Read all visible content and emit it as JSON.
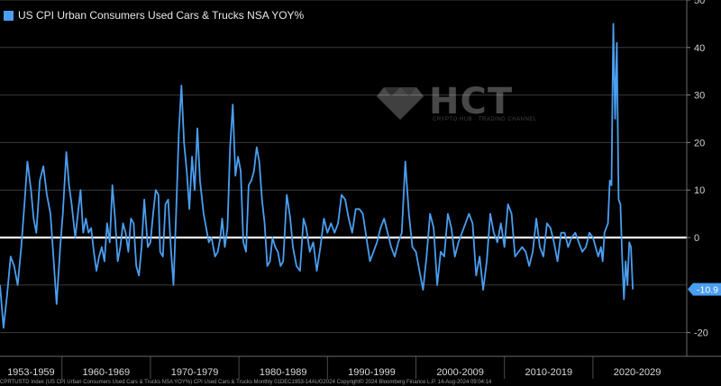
{
  "chart_data": {
    "type": "line",
    "title": "",
    "legend": [
      {
        "name": "US CPI Urban Consumers Used Cars & Trucks NSA YOY%",
        "color": "#4a9ef0"
      }
    ],
    "xlabel": "",
    "ylabel": "",
    "xlim": [
      1953,
      2030.6
    ],
    "ylim": [
      -25,
      50
    ],
    "yticks": [
      50,
      40,
      30,
      20,
      10,
      0,
      -20
    ],
    "last_value_label": "-10.9",
    "x_categories": [
      "1953-1959",
      "1960-1969",
      "1970-1979",
      "1980-1989",
      "1990-1999",
      "2000-2009",
      "2010-2019",
      "2020-2029"
    ],
    "series_color": "#4a9ef0",
    "zero_line_color": "#ffffff",
    "series": [
      {
        "name": "US CPI Urban Consumers Used Cars & Trucks NSA YOY%",
        "x": [
          1953.0,
          1953.4,
          1953.8,
          1954.2,
          1954.6,
          1955.0,
          1955.4,
          1955.8,
          1956.1,
          1956.5,
          1956.8,
          1957.1,
          1957.5,
          1957.9,
          1958.3,
          1958.7,
          1959.0,
          1959.4,
          1959.8,
          1960.1,
          1960.5,
          1960.8,
          1961.1,
          1961.5,
          1961.8,
          1962.1,
          1962.4,
          1962.7,
          1963.0,
          1963.3,
          1963.6,
          1963.9,
          1964.2,
          1964.5,
          1964.8,
          1965.1,
          1965.4,
          1965.7,
          1966.0,
          1966.3,
          1966.6,
          1966.9,
          1967.2,
          1967.5,
          1967.8,
          1968.1,
          1968.4,
          1968.7,
          1969.0,
          1969.3,
          1969.7,
          1970.0,
          1970.3,
          1970.6,
          1970.9,
          1971.1,
          1971.4,
          1971.7,
          1972.0,
          1972.3,
          1972.6,
          1972.9,
          1973.2,
          1973.5,
          1973.8,
          1974.1,
          1974.4,
          1974.7,
          1975.0,
          1975.3,
          1975.6,
          1976.0,
          1976.3,
          1976.6,
          1976.9,
          1977.3,
          1977.6,
          1977.9,
          1978.1,
          1978.4,
          1978.7,
          1979.0,
          1979.3,
          1979.6,
          1979.9,
          1980.2,
          1980.5,
          1980.8,
          1981.1,
          1981.4,
          1981.7,
          1982.0,
          1982.3,
          1982.6,
          1982.9,
          1983.2,
          1983.5,
          1983.8,
          1984.1,
          1984.4,
          1984.7,
          1985.0,
          1985.4,
          1985.8,
          1986.1,
          1986.5,
          1986.9,
          1987.3,
          1987.6,
          1988.0,
          1988.4,
          1988.8,
          1989.2,
          1989.6,
          1990.0,
          1990.4,
          1990.8,
          1991.2,
          1991.6,
          1992.0,
          1992.4,
          1992.8,
          1993.2,
          1993.6,
          1994.0,
          1994.4,
          1994.8,
          1995.2,
          1995.6,
          1996.0,
          1996.4,
          1996.8,
          1997.2,
          1997.6,
          1998.0,
          1998.4,
          1998.8,
          1999.2,
          1999.6,
          2000.0,
          2000.4,
          2000.8,
          2001.2,
          2001.6,
          2002.0,
          2002.4,
          2002.8,
          2003.2,
          2003.6,
          2004.0,
          2004.4,
          2004.8,
          2005.2,
          2005.6,
          2006.0,
          2006.4,
          2006.8,
          2007.2,
          2007.6,
          2008.0,
          2008.4,
          2008.8,
          2009.2,
          2009.6,
          2010.0,
          2010.4,
          2010.8,
          2011.2,
          2011.6,
          2012.0,
          2012.4,
          2012.8,
          2013.2,
          2013.6,
          2014.0,
          2014.4,
          2014.8,
          2015.2,
          2015.6,
          2016.0,
          2016.4,
          2016.8,
          2017.2,
          2017.6,
          2018.0,
          2018.4,
          2018.8,
          2019.2,
          2019.6,
          2020.0,
          2020.3,
          2020.6,
          2020.9,
          2021.1,
          2021.3,
          2021.5,
          2021.7,
          2021.9,
          2022.1,
          2022.3,
          2022.5,
          2022.7,
          2022.9,
          2023.1,
          2023.3,
          2023.5,
          2023.7,
          2023.9,
          2024.1,
          2024.3,
          2024.5
        ],
        "values": [
          -10,
          -19,
          -12,
          -4,
          -6,
          -10,
          -2,
          8,
          16,
          10,
          4,
          1,
          12,
          15,
          9,
          5,
          -3,
          -14,
          -2,
          5,
          18,
          11,
          7,
          0,
          5,
          10,
          1,
          4,
          1,
          2,
          -3,
          -7,
          -4,
          -2,
          -5,
          3,
          -1,
          11,
          4,
          -5,
          -2,
          3,
          1,
          -3,
          4,
          3,
          -6,
          -8,
          -2,
          8,
          -2,
          -1,
          5,
          10,
          9,
          -3,
          -4,
          7,
          8,
          -2,
          -10,
          5,
          22,
          32,
          20,
          14,
          6,
          17,
          10,
          23,
          12,
          5,
          2,
          -1,
          0,
          -4,
          -3,
          0,
          4,
          -2,
          2,
          19,
          28,
          13,
          17,
          14,
          -1,
          -3,
          11,
          12,
          14,
          19,
          16,
          8,
          3,
          -6,
          -5,
          0,
          -2,
          -3,
          -6,
          -5,
          9,
          4,
          -2,
          -6,
          -7,
          4,
          2,
          -3,
          -1,
          -7,
          -2,
          4,
          1,
          3,
          1,
          3,
          9,
          8,
          4,
          1,
          6,
          6,
          5,
          0,
          -5,
          -3,
          -1,
          2,
          4,
          1,
          -2,
          -4,
          -1,
          1,
          16,
          5,
          -2,
          -3,
          -7,
          -11,
          -4,
          5,
          2,
          -10,
          -3,
          -4,
          5,
          2,
          -4,
          -1,
          1,
          3,
          5,
          3,
          -8,
          -4,
          -11,
          -5,
          5,
          1,
          -1,
          3,
          -2,
          7,
          5,
          -4,
          -3,
          -2,
          -3,
          -6,
          -3,
          4,
          -2,
          -4,
          3,
          2,
          -1,
          -5,
          1,
          1,
          -2,
          0,
          1,
          -1,
          -3,
          -2,
          1,
          0,
          -2,
          -4,
          -2,
          -5,
          1,
          2,
          3,
          12,
          11,
          45,
          25,
          41,
          8,
          7,
          -4,
          -13,
          -5,
          -10,
          -1,
          -2,
          -10.9
        ]
      }
    ]
  },
  "watermark": {
    "text": "HCT",
    "subtitle": "CRYPTO HUB · TRADING CHANNEL"
  },
  "footer_text": "CPRTUSTD Index (US CPI Urban Consumers Used Cars & Trucks NSA YOY%) CPI Used Cars & Trucks Monthly 01DEC1953-14AUG2024 Copyright© 2024 Bloomberg Finance L.P. 14-Aug-2024 09:04:14"
}
